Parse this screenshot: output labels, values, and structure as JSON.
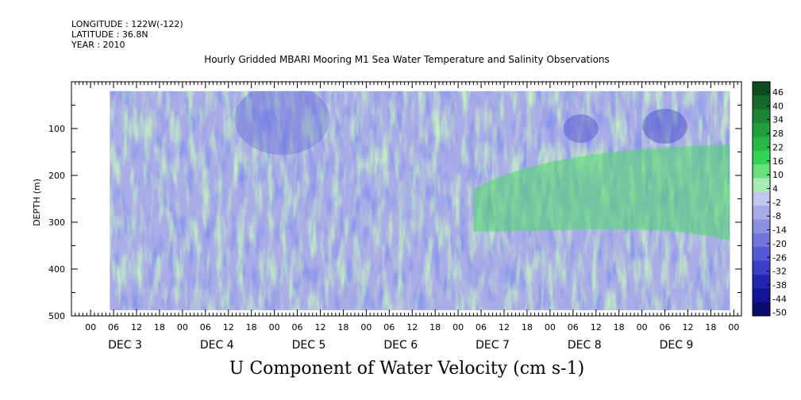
{
  "header": {
    "longitude": "LONGITUDE : 122W(-122)",
    "latitude": "LATITUDE : 36.8N",
    "year": "YEAR : 2010"
  },
  "title": "Hourly Gridded MBARI Mooring M1 Sea Water Temperature and Salinity Observations",
  "bottom_title": "U Component of Water Velocity (cm s-1)",
  "chart_data": {
    "type": "heatmap",
    "title": "Hourly Gridded MBARI Mooring M1 Sea Water Temperature and Salinity Observations",
    "subtitle": "U Component of Water Velocity (cm s-1)",
    "ylabel": "DEPTH (m)",
    "y_reversed": true,
    "ylim": [
      0,
      500
    ],
    "y_ticks": [
      100,
      200,
      300,
      400,
      500
    ],
    "hour_ticks": [
      "00",
      "06",
      "12",
      "18"
    ],
    "days": [
      "DEC 3",
      "DEC 4",
      "DEC 5",
      "DEC 6",
      "DEC 7",
      "DEC 8",
      "DEC 9"
    ],
    "x_range_hours": [
      -5,
      170
    ],
    "data_hours": [
      5,
      167
    ],
    "data_depth": [
      20,
      488
    ],
    "colorbar": {
      "levels": [
        46,
        40,
        34,
        28,
        22,
        16,
        10,
        4,
        -2,
        -8,
        -14,
        -20,
        -26,
        -32,
        -38,
        -44,
        -50
      ],
      "colors": [
        "#0d4a1e",
        "#14692b",
        "#1b8534",
        "#219e3c",
        "#27b846",
        "#33d357",
        "#66e27d",
        "#a9ecb3",
        "#c3c6ee",
        "#a8abe8",
        "#8d91e2",
        "#7074dc",
        "#5559d3",
        "#3a3dc5",
        "#2225b0",
        "#121696",
        "#0a0c6f"
      ]
    },
    "grid": false,
    "legend": "right colorbar"
  }
}
